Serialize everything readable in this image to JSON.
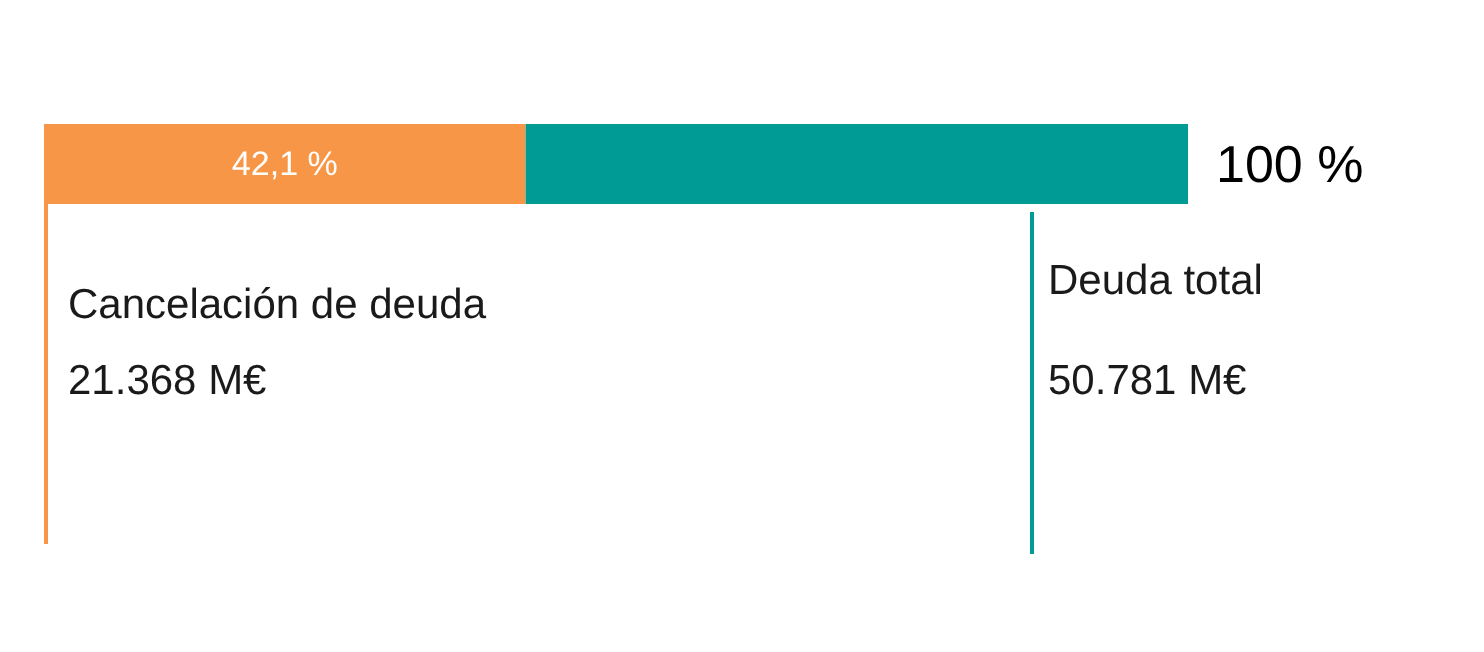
{
  "chart_data": {
    "type": "bar",
    "orientation": "horizontal",
    "stacked": true,
    "categories": [
      null
    ],
    "series": [
      {
        "color": "#f79646",
        "values": [
          42.1
        ],
        "value_labels": [
          "42,1 %"
        ]
      },
      {
        "color": "#009b95",
        "values": [
          57.9
        ]
      }
    ],
    "xlim": [
      0,
      100
    ],
    "tick_labels": false,
    "totals": [
      "100 %"
    ],
    "annotations": [
      "Cancelación de deuda",
      "21.368 M€",
      "Deuda total",
      "50.781 M€"
    ]
  }
}
